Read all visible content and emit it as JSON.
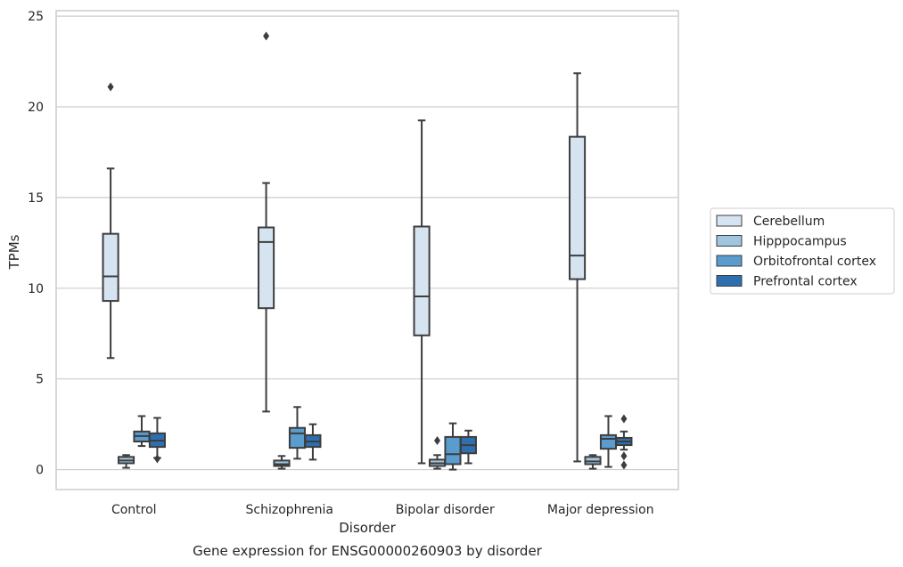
{
  "chart_data": {
    "type": "box",
    "caption": "Gene expression for ENSG00000260903 by disorder",
    "xlabel": "Disorder",
    "ylabel": "TPMs",
    "ylim": [
      -1.1,
      25.3
    ],
    "yticks": [
      0,
      5,
      10,
      15,
      20,
      25
    ],
    "grid": "horizontal",
    "legend_position": "right",
    "categories": [
      "Control",
      "Schizophrenia",
      "Bipolar disorder",
      "Major depression"
    ],
    "series": [
      {
        "name": "Cerebellum",
        "color": "#d6e4f2",
        "boxes": [
          {
            "whislo": 6.15,
            "q1": 9.3,
            "med": 10.65,
            "q3": 13.0,
            "whishi": 16.6,
            "fliers": [
              21.1
            ]
          },
          {
            "whislo": 3.2,
            "q1": 8.9,
            "med": 12.55,
            "q3": 13.35,
            "whishi": 15.8,
            "fliers": [
              23.9
            ]
          },
          {
            "whislo": 0.35,
            "q1": 7.4,
            "med": 9.55,
            "q3": 13.4,
            "whishi": 19.25,
            "fliers": []
          },
          {
            "whislo": 0.45,
            "q1": 10.5,
            "med": 11.8,
            "q3": 18.35,
            "whishi": 21.85,
            "fliers": []
          }
        ]
      },
      {
        "name": "Hipppocampus",
        "color": "#a0c5de",
        "boxes": [
          {
            "whislo": 0.1,
            "q1": 0.35,
            "med": 0.5,
            "q3": 0.7,
            "whishi": 0.8,
            "fliers": []
          },
          {
            "whislo": 0.05,
            "q1": 0.2,
            "med": 0.3,
            "q3": 0.5,
            "whishi": 0.75,
            "fliers": []
          },
          {
            "whislo": 0.05,
            "q1": 0.2,
            "med": 0.35,
            "q3": 0.55,
            "whishi": 0.8,
            "fliers": [
              1.6
            ]
          },
          {
            "whislo": 0.05,
            "q1": 0.3,
            "med": 0.45,
            "q3": 0.7,
            "whishi": 0.8,
            "fliers": []
          }
        ]
      },
      {
        "name": "Orbitofrontal cortex",
        "color": "#5a9ccd",
        "boxes": [
          {
            "whislo": 1.3,
            "q1": 1.55,
            "med": 1.85,
            "q3": 2.1,
            "whishi": 2.95,
            "fliers": []
          },
          {
            "whislo": 0.6,
            "q1": 1.2,
            "med": 2.0,
            "q3": 2.3,
            "whishi": 3.45,
            "fliers": []
          },
          {
            "whislo": 0.0,
            "q1": 0.3,
            "med": 0.85,
            "q3": 1.8,
            "whishi": 2.55,
            "fliers": []
          },
          {
            "whislo": 0.15,
            "q1": 1.15,
            "med": 1.7,
            "q3": 1.9,
            "whishi": 2.95,
            "fliers": []
          }
        ]
      },
      {
        "name": "Prefrontal cortex",
        "color": "#2e6fb0",
        "boxes": [
          {
            "whislo": 0.65,
            "q1": 1.25,
            "med": 1.6,
            "q3": 2.0,
            "whishi": 2.85,
            "fliers": [
              0.6
            ]
          },
          {
            "whislo": 0.55,
            "q1": 1.25,
            "med": 1.55,
            "q3": 1.9,
            "whishi": 2.5,
            "fliers": []
          },
          {
            "whislo": 0.35,
            "q1": 0.9,
            "med": 1.35,
            "q3": 1.8,
            "whishi": 2.15,
            "fliers": []
          },
          {
            "whislo": 1.1,
            "q1": 1.35,
            "med": 1.55,
            "q3": 1.75,
            "whishi": 2.1,
            "fliers": [
              2.8,
              0.75,
              0.25
            ]
          }
        ]
      }
    ]
  }
}
